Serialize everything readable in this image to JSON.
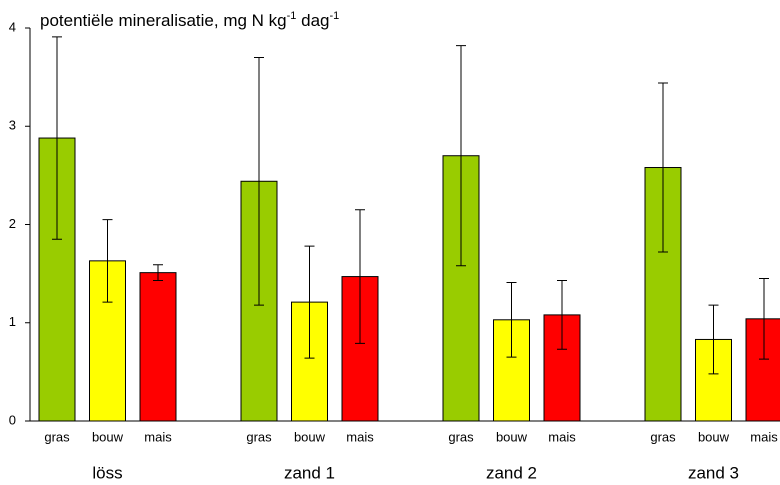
{
  "chart_data": {
    "type": "bar",
    "title_parts": [
      "potentiële mineralisatie, mg N kg",
      "-1",
      " dag",
      "-1"
    ],
    "categories": [
      "löss",
      "zand 1",
      "zand 2",
      "zand 3"
    ],
    "series": [
      {
        "name": "gras",
        "color": "#99cc00",
        "values": [
          2.88,
          2.44,
          2.7,
          2.58
        ],
        "errors": [
          1.03,
          1.26,
          1.12,
          0.86
        ]
      },
      {
        "name": "bouw",
        "color": "#ffff00",
        "values": [
          1.63,
          1.21,
          1.03,
          0.83
        ],
        "errors": [
          0.42,
          0.57,
          0.38,
          0.35
        ]
      },
      {
        "name": "mais",
        "color": "#ff0000",
        "values": [
          1.51,
          1.47,
          1.08,
          1.04
        ],
        "errors": [
          0.08,
          0.68,
          0.35,
          0.41
        ]
      }
    ],
    "ylim": [
      0,
      4
    ],
    "yticks": [
      0,
      1,
      2,
      3,
      4
    ],
    "grid": false
  }
}
